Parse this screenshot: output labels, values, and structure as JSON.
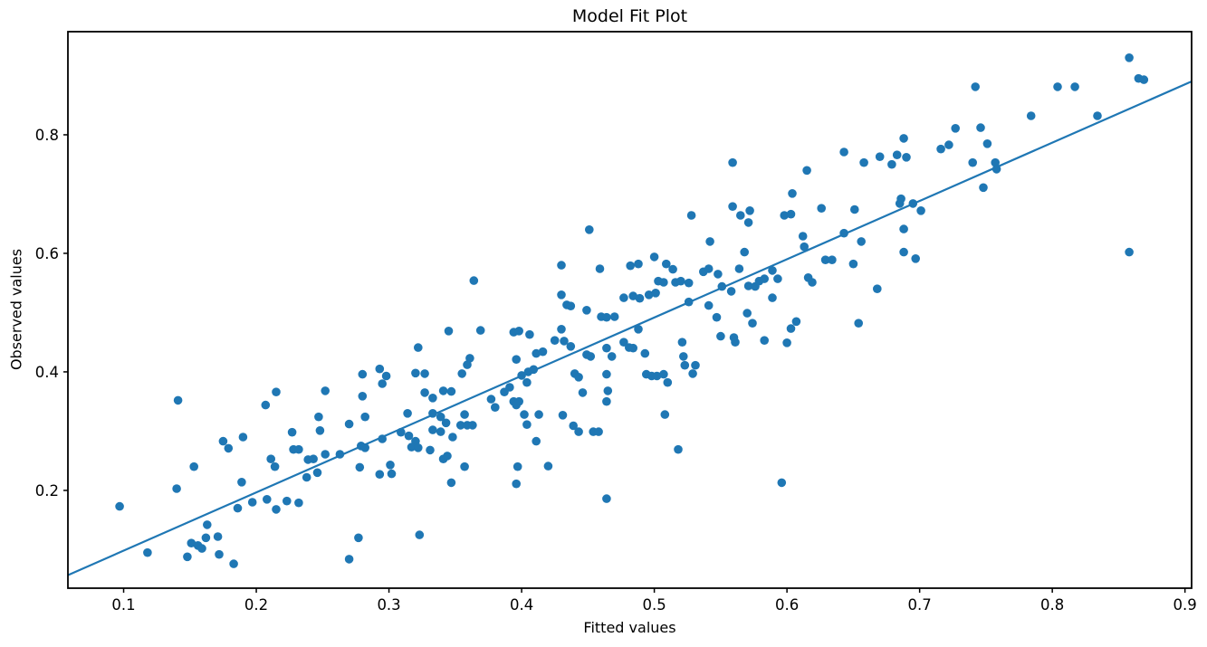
{
  "chart_data": {
    "type": "scatter",
    "title": "Model Fit Plot",
    "xlabel": "Fitted values",
    "ylabel": "Observed values",
    "xlim": [
      0.058,
      0.905
    ],
    "ylim": [
      0.035,
      0.974
    ],
    "xticks": [
      0.1,
      0.2,
      0.3,
      0.4,
      0.5,
      0.6,
      0.7,
      0.8,
      0.9
    ],
    "yticks": [
      0.2,
      0.4,
      0.6,
      0.8
    ],
    "grid": false,
    "legend_position": "none",
    "marker_color": "#1f77b4",
    "line_color": "#1f77b4",
    "axis_color": "#000000",
    "fit_line": {
      "x1": 0.058,
      "y1": 0.057,
      "x2": 0.905,
      "y2": 0.89
    },
    "points": [
      [
        0.097,
        0.173
      ],
      [
        0.118,
        0.095
      ],
      [
        0.141,
        0.352
      ],
      [
        0.14,
        0.203
      ],
      [
        0.153,
        0.24
      ],
      [
        0.148,
        0.088
      ],
      [
        0.151,
        0.111
      ],
      [
        0.156,
        0.107
      ],
      [
        0.159,
        0.102
      ],
      [
        0.162,
        0.12
      ],
      [
        0.163,
        0.142
      ],
      [
        0.171,
        0.122
      ],
      [
        0.172,
        0.092
      ],
      [
        0.183,
        0.076
      ],
      [
        0.175,
        0.283
      ],
      [
        0.179,
        0.271
      ],
      [
        0.19,
        0.29
      ],
      [
        0.189,
        0.214
      ],
      [
        0.186,
        0.17
      ],
      [
        0.197,
        0.18
      ],
      [
        0.208,
        0.185
      ],
      [
        0.215,
        0.168
      ],
      [
        0.223,
        0.182
      ],
      [
        0.232,
        0.179
      ],
      [
        0.207,
        0.344
      ],
      [
        0.211,
        0.253
      ],
      [
        0.214,
        0.24
      ],
      [
        0.215,
        0.366
      ],
      [
        0.227,
        0.298
      ],
      [
        0.228,
        0.269
      ],
      [
        0.232,
        0.269
      ],
      [
        0.238,
        0.222
      ],
      [
        0.246,
        0.23
      ],
      [
        0.239,
        0.252
      ],
      [
        0.243,
        0.253
      ],
      [
        0.247,
        0.324
      ],
      [
        0.248,
        0.301
      ],
      [
        0.252,
        0.368
      ],
      [
        0.252,
        0.261
      ],
      [
        0.263,
        0.261
      ],
      [
        0.27,
        0.312
      ],
      [
        0.27,
        0.084
      ],
      [
        0.277,
        0.12
      ],
      [
        0.278,
        0.239
      ],
      [
        0.279,
        0.275
      ],
      [
        0.282,
        0.272
      ],
      [
        0.282,
        0.324
      ],
      [
        0.28,
        0.359
      ],
      [
        0.28,
        0.396
      ],
      [
        0.293,
        0.227
      ],
      [
        0.301,
        0.243
      ],
      [
        0.302,
        0.228
      ],
      [
        0.295,
        0.287
      ],
      [
        0.293,
        0.405
      ],
      [
        0.298,
        0.393
      ],
      [
        0.295,
        0.38
      ],
      [
        0.309,
        0.298
      ],
      [
        0.315,
        0.292
      ],
      [
        0.32,
        0.283
      ],
      [
        0.317,
        0.273
      ],
      [
        0.322,
        0.272
      ],
      [
        0.314,
        0.33
      ],
      [
        0.322,
        0.441
      ],
      [
        0.32,
        0.398
      ],
      [
        0.327,
        0.397
      ],
      [
        0.327,
        0.365
      ],
      [
        0.323,
        0.125
      ],
      [
        0.331,
        0.268
      ],
      [
        0.333,
        0.356
      ],
      [
        0.333,
        0.33
      ],
      [
        0.339,
        0.324
      ],
      [
        0.333,
        0.302
      ],
      [
        0.339,
        0.299
      ],
      [
        0.341,
        0.368
      ],
      [
        0.347,
        0.367
      ],
      [
        0.341,
        0.253
      ],
      [
        0.347,
        0.213
      ],
      [
        0.348,
        0.29
      ],
      [
        0.345,
        0.469
      ],
      [
        0.343,
        0.314
      ],
      [
        0.344,
        0.258
      ],
      [
        0.354,
        0.31
      ],
      [
        0.359,
        0.31
      ],
      [
        0.363,
        0.31
      ],
      [
        0.357,
        0.328
      ],
      [
        0.357,
        0.24
      ],
      [
        0.355,
        0.397
      ],
      [
        0.359,
        0.412
      ],
      [
        0.361,
        0.423
      ],
      [
        0.364,
        0.554
      ],
      [
        0.369,
        0.47
      ],
      [
        0.38,
        0.34
      ],
      [
        0.377,
        0.354
      ],
      [
        0.387,
        0.366
      ],
      [
        0.391,
        0.374
      ],
      [
        0.394,
        0.35
      ],
      [
        0.398,
        0.35
      ],
      [
        0.396,
        0.421
      ],
      [
        0.4,
        0.394
      ],
      [
        0.404,
        0.382
      ],
      [
        0.405,
        0.4
      ],
      [
        0.409,
        0.404
      ],
      [
        0.394,
        0.467
      ],
      [
        0.398,
        0.469
      ],
      [
        0.396,
        0.344
      ],
      [
        0.396,
        0.211
      ],
      [
        0.397,
        0.24
      ],
      [
        0.406,
        0.463
      ],
      [
        0.402,
        0.328
      ],
      [
        0.404,
        0.311
      ],
      [
        0.411,
        0.283
      ],
      [
        0.413,
        0.328
      ],
      [
        0.411,
        0.431
      ],
      [
        0.416,
        0.434
      ],
      [
        0.42,
        0.241
      ],
      [
        0.425,
        0.453
      ],
      [
        0.43,
        0.472
      ],
      [
        0.43,
        0.58
      ],
      [
        0.432,
        0.452
      ],
      [
        0.437,
        0.443
      ],
      [
        0.431,
        0.327
      ],
      [
        0.44,
        0.397
      ],
      [
        0.443,
        0.391
      ],
      [
        0.439,
        0.309
      ],
      [
        0.443,
        0.299
      ],
      [
        0.43,
        0.53
      ],
      [
        0.434,
        0.513
      ],
      [
        0.437,
        0.511
      ],
      [
        0.446,
        0.365
      ],
      [
        0.449,
        0.504
      ],
      [
        0.449,
        0.429
      ],
      [
        0.452,
        0.426
      ],
      [
        0.451,
        0.64
      ],
      [
        0.454,
        0.299
      ],
      [
        0.458,
        0.299
      ],
      [
        0.459,
        0.574
      ],
      [
        0.46,
        0.493
      ],
      [
        0.464,
        0.492
      ],
      [
        0.47,
        0.493
      ],
      [
        0.464,
        0.44
      ],
      [
        0.468,
        0.426
      ],
      [
        0.464,
        0.396
      ],
      [
        0.464,
        0.35
      ],
      [
        0.465,
        0.368
      ],
      [
        0.464,
        0.186
      ],
      [
        0.477,
        0.525
      ],
      [
        0.484,
        0.528
      ],
      [
        0.489,
        0.524
      ],
      [
        0.496,
        0.53
      ],
      [
        0.501,
        0.533
      ],
      [
        0.477,
        0.45
      ],
      [
        0.481,
        0.441
      ],
      [
        0.484,
        0.44
      ],
      [
        0.488,
        0.472
      ],
      [
        0.482,
        0.579
      ],
      [
        0.488,
        0.582
      ],
      [
        0.493,
        0.431
      ],
      [
        0.494,
        0.396
      ],
      [
        0.498,
        0.393
      ],
      [
        0.502,
        0.393
      ],
      [
        0.507,
        0.396
      ],
      [
        0.5,
        0.594
      ],
      [
        0.503,
        0.553
      ],
      [
        0.507,
        0.551
      ],
      [
        0.509,
        0.582
      ],
      [
        0.514,
        0.573
      ],
      [
        0.51,
        0.382
      ],
      [
        0.508,
        0.328
      ],
      [
        0.516,
        0.551
      ],
      [
        0.52,
        0.553
      ],
      [
        0.526,
        0.55
      ],
      [
        0.518,
        0.269
      ],
      [
        0.521,
        0.45
      ],
      [
        0.522,
        0.426
      ],
      [
        0.523,
        0.411
      ],
      [
        0.526,
        0.518
      ],
      [
        0.528,
        0.664
      ],
      [
        0.529,
        0.397
      ],
      [
        0.531,
        0.411
      ],
      [
        0.537,
        0.569
      ],
      [
        0.541,
        0.574
      ],
      [
        0.541,
        0.512
      ],
      [
        0.542,
        0.62
      ],
      [
        0.547,
        0.492
      ],
      [
        0.548,
        0.565
      ],
      [
        0.55,
        0.46
      ],
      [
        0.551,
        0.544
      ],
      [
        0.558,
        0.536
      ],
      [
        0.559,
        0.753
      ],
      [
        0.559,
        0.679
      ],
      [
        0.565,
        0.664
      ],
      [
        0.56,
        0.458
      ],
      [
        0.561,
        0.45
      ],
      [
        0.564,
        0.574
      ],
      [
        0.568,
        0.602
      ],
      [
        0.571,
        0.652
      ],
      [
        0.571,
        0.545
      ],
      [
        0.576,
        0.544
      ],
      [
        0.57,
        0.499
      ],
      [
        0.574,
        0.482
      ],
      [
        0.572,
        0.672
      ],
      [
        0.579,
        0.553
      ],
      [
        0.583,
        0.557
      ],
      [
        0.583,
        0.453
      ],
      [
        0.589,
        0.571
      ],
      [
        0.593,
        0.557
      ],
      [
        0.589,
        0.525
      ],
      [
        0.596,
        0.213
      ],
      [
        0.598,
        0.664
      ],
      [
        0.603,
        0.666
      ],
      [
        0.604,
        0.701
      ],
      [
        0.6,
        0.449
      ],
      [
        0.603,
        0.473
      ],
      [
        0.607,
        0.485
      ],
      [
        0.612,
        0.629
      ],
      [
        0.613,
        0.611
      ],
      [
        0.615,
        0.74
      ],
      [
        0.616,
        0.559
      ],
      [
        0.619,
        0.551
      ],
      [
        0.626,
        0.676
      ],
      [
        0.629,
        0.589
      ],
      [
        0.634,
        0.589
      ],
      [
        0.643,
        0.634
      ],
      [
        0.643,
        0.771
      ],
      [
        0.65,
        0.582
      ],
      [
        0.651,
        0.674
      ],
      [
        0.654,
        0.482
      ],
      [
        0.656,
        0.62
      ],
      [
        0.658,
        0.753
      ],
      [
        0.668,
        0.54
      ],
      [
        0.67,
        0.763
      ],
      [
        0.679,
        0.75
      ],
      [
        0.683,
        0.766
      ],
      [
        0.69,
        0.762
      ],
      [
        0.685,
        0.684
      ],
      [
        0.686,
        0.692
      ],
      [
        0.688,
        0.794
      ],
      [
        0.688,
        0.641
      ],
      [
        0.688,
        0.602
      ],
      [
        0.695,
        0.684
      ],
      [
        0.697,
        0.591
      ],
      [
        0.701,
        0.672
      ],
      [
        0.716,
        0.776
      ],
      [
        0.722,
        0.783
      ],
      [
        0.727,
        0.811
      ],
      [
        0.74,
        0.753
      ],
      [
        0.742,
        0.881
      ],
      [
        0.746,
        0.812
      ],
      [
        0.748,
        0.711
      ],
      [
        0.751,
        0.785
      ],
      [
        0.757,
        0.753
      ],
      [
        0.758,
        0.742
      ],
      [
        0.784,
        0.832
      ],
      [
        0.804,
        0.881
      ],
      [
        0.817,
        0.881
      ],
      [
        0.834,
        0.832
      ],
      [
        0.858,
        0.93
      ],
      [
        0.858,
        0.602
      ],
      [
        0.865,
        0.895
      ],
      [
        0.869,
        0.893
      ]
    ]
  }
}
